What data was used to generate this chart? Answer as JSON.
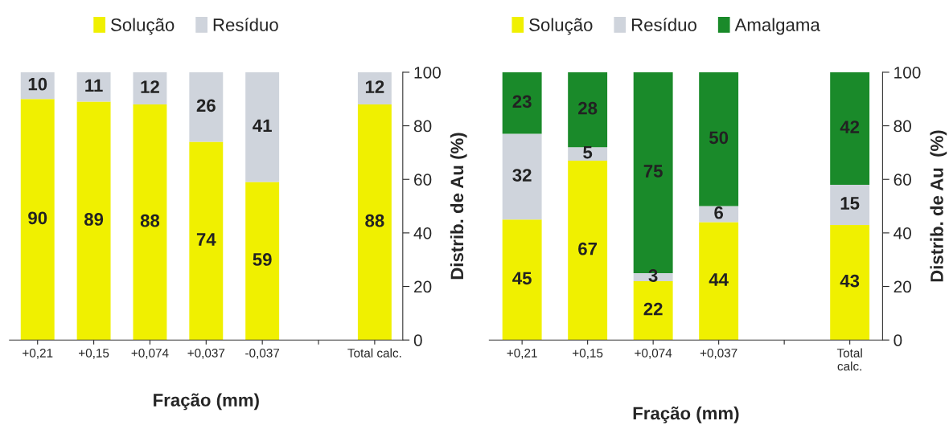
{
  "chart_data": [
    {
      "type": "bar",
      "stacked": true,
      "categories": [
        "+0,21",
        "+0,15",
        "+0,074",
        "+0,037",
        "-0,037",
        null,
        "Total calc."
      ],
      "series": [
        {
          "name": "Solução",
          "color": "#f0f000",
          "values": [
            90,
            89,
            88,
            74,
            59,
            null,
            88
          ]
        },
        {
          "name": "Resíduo",
          "color": "#cfd4dc",
          "values": [
            10,
            11,
            12,
            26,
            41,
            null,
            12
          ]
        }
      ],
      "xlabel": "Fração (mm)",
      "ylabel": "Distrib. de Au (%)",
      "ylim": [
        0,
        100
      ],
      "yticks": [
        0,
        20,
        40,
        60,
        80,
        100
      ],
      "data_labels": true,
      "legend": "top",
      "grid": false
    },
    {
      "type": "bar",
      "stacked": true,
      "categories": [
        "+0,21",
        "+0,15",
        "+0,074",
        "+0,037",
        null,
        "Total\ncalc."
      ],
      "series": [
        {
          "name": "Solução",
          "color": "#f0f000",
          "values": [
            45,
            67,
            22,
            44,
            null,
            43
          ]
        },
        {
          "name": "Resíduo",
          "color": "#cfd4dc",
          "values": [
            32,
            5,
            3,
            6,
            null,
            15
          ]
        },
        {
          "name": "Amalgama",
          "color": "#1a8a2a",
          "values": [
            23,
            28,
            75,
            50,
            null,
            42
          ]
        }
      ],
      "xlabel": "Fração (mm)",
      "ylabel": "Distrib. de Au  (%)",
      "ylim": [
        0,
        100
      ],
      "yticks": [
        0,
        20,
        40,
        60,
        80,
        100
      ],
      "data_labels": true,
      "legend": "top",
      "grid": false
    }
  ]
}
